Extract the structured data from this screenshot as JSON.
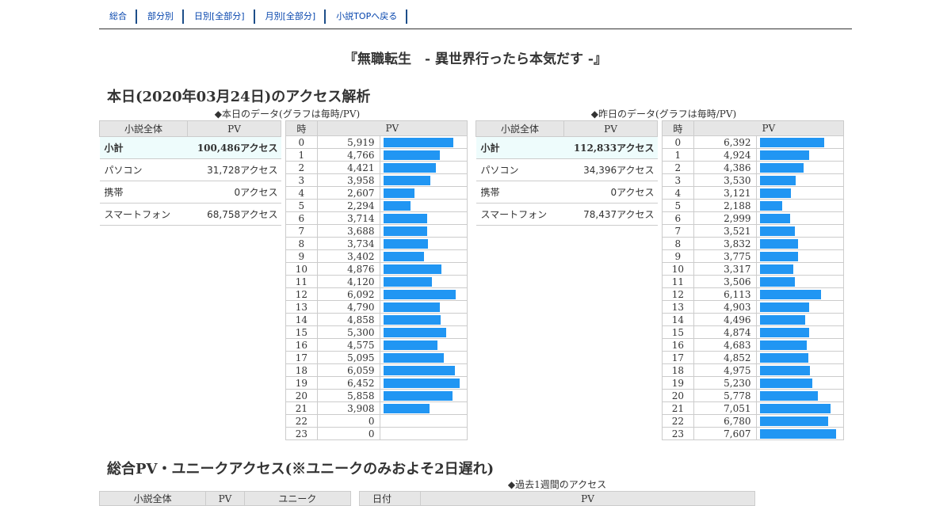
{
  "nav": [
    "総合",
    "部分別",
    "日別[全部分]",
    "月別[全部分]",
    "小説TOPへ戻る"
  ],
  "novel_title": "『無職転生　- 異世界行ったら本気だす -』",
  "today_heading": "本日(2020年03月24日)のアクセス解析",
  "today": {
    "caption": "◆本日のデータ(グラフは毎時/PV)",
    "summary_headers": [
      "小説全体",
      "PV"
    ],
    "summary_rows": [
      {
        "label": "小計",
        "value": "100,486アクセス"
      },
      {
        "label": "パソコン",
        "value": "31,728アクセス"
      },
      {
        "label": "携帯",
        "value": "0アクセス"
      },
      {
        "label": "スマートフォン",
        "value": "68,758アクセス"
      }
    ],
    "hourly_headers": [
      "時",
      "PV"
    ],
    "hourly": [
      {
        "hour": "0",
        "pv": "5,919",
        "n": 5919
      },
      {
        "hour": "1",
        "pv": "4,766",
        "n": 4766
      },
      {
        "hour": "2",
        "pv": "4,421",
        "n": 4421
      },
      {
        "hour": "3",
        "pv": "3,958",
        "n": 3958
      },
      {
        "hour": "4",
        "pv": "2,607",
        "n": 2607
      },
      {
        "hour": "5",
        "pv": "2,294",
        "n": 2294
      },
      {
        "hour": "6",
        "pv": "3,714",
        "n": 3714
      },
      {
        "hour": "7",
        "pv": "3,688",
        "n": 3688
      },
      {
        "hour": "8",
        "pv": "3,734",
        "n": 3734
      },
      {
        "hour": "9",
        "pv": "3,402",
        "n": 3402
      },
      {
        "hour": "10",
        "pv": "4,876",
        "n": 4876
      },
      {
        "hour": "11",
        "pv": "4,120",
        "n": 4120
      },
      {
        "hour": "12",
        "pv": "6,092",
        "n": 6092
      },
      {
        "hour": "13",
        "pv": "4,790",
        "n": 4790
      },
      {
        "hour": "14",
        "pv": "4,858",
        "n": 4858
      },
      {
        "hour": "15",
        "pv": "5,300",
        "n": 5300
      },
      {
        "hour": "16",
        "pv": "4,575",
        "n": 4575
      },
      {
        "hour": "17",
        "pv": "5,095",
        "n": 5095
      },
      {
        "hour": "18",
        "pv": "6,059",
        "n": 6059
      },
      {
        "hour": "19",
        "pv": "6,452",
        "n": 6452
      },
      {
        "hour": "20",
        "pv": "5,858",
        "n": 5858
      },
      {
        "hour": "21",
        "pv": "3,908",
        "n": 3908
      },
      {
        "hour": "22",
        "pv": "0",
        "n": 0
      },
      {
        "hour": "23",
        "pv": "0",
        "n": 0
      }
    ]
  },
  "yesterday": {
    "caption": "◆昨日のデータ(グラフは毎時/PV)",
    "summary_headers": [
      "小説全体",
      "PV"
    ],
    "summary_rows": [
      {
        "label": "小計",
        "value": "112,833アクセス"
      },
      {
        "label": "パソコン",
        "value": "34,396アクセス"
      },
      {
        "label": "携帯",
        "value": "0アクセス"
      },
      {
        "label": "スマートフォン",
        "value": "78,437アクセス"
      }
    ],
    "hourly_headers": [
      "時",
      "PV"
    ],
    "hourly": [
      {
        "hour": "0",
        "pv": "6,392",
        "n": 6392
      },
      {
        "hour": "1",
        "pv": "4,924",
        "n": 4924
      },
      {
        "hour": "2",
        "pv": "4,386",
        "n": 4386
      },
      {
        "hour": "3",
        "pv": "3,530",
        "n": 3530
      },
      {
        "hour": "4",
        "pv": "3,121",
        "n": 3121
      },
      {
        "hour": "5",
        "pv": "2,188",
        "n": 2188
      },
      {
        "hour": "6",
        "pv": "2,999",
        "n": 2999
      },
      {
        "hour": "7",
        "pv": "3,521",
        "n": 3521
      },
      {
        "hour": "8",
        "pv": "3,832",
        "n": 3832
      },
      {
        "hour": "9",
        "pv": "3,775",
        "n": 3775
      },
      {
        "hour": "10",
        "pv": "3,317",
        "n": 3317
      },
      {
        "hour": "11",
        "pv": "3,506",
        "n": 3506
      },
      {
        "hour": "12",
        "pv": "6,113",
        "n": 6113
      },
      {
        "hour": "13",
        "pv": "4,903",
        "n": 4903
      },
      {
        "hour": "14",
        "pv": "4,496",
        "n": 4496
      },
      {
        "hour": "15",
        "pv": "4,874",
        "n": 4874
      },
      {
        "hour": "16",
        "pv": "4,683",
        "n": 4683
      },
      {
        "hour": "17",
        "pv": "4,852",
        "n": 4852
      },
      {
        "hour": "18",
        "pv": "4,975",
        "n": 4975
      },
      {
        "hour": "19",
        "pv": "5,230",
        "n": 5230
      },
      {
        "hour": "20",
        "pv": "5,778",
        "n": 5778
      },
      {
        "hour": "21",
        "pv": "7,051",
        "n": 7051
      },
      {
        "hour": "22",
        "pv": "6,780",
        "n": 6780
      },
      {
        "hour": "23",
        "pv": "7,607",
        "n": 7607
      }
    ]
  },
  "total_heading": "総合PV・ユニークアクセス(※ユニークのみおよそ2日遅れ)",
  "week_caption": "◆過去1週間のアクセス",
  "total_headers": [
    "小説全体",
    "PV",
    "ユニーク"
  ],
  "week_headers": [
    "日付",
    "PV"
  ],
  "colors": {
    "bar": "#2196f3",
    "header_bg": "#e6e6e6",
    "subtotal_bg": "#eefcfc",
    "link": "#0645ad"
  }
}
